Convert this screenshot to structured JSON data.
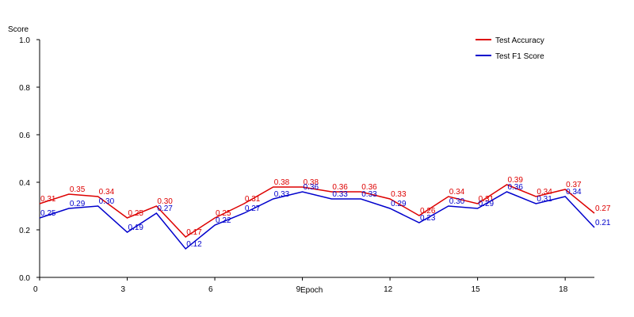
{
  "chart_data": {
    "type": "line",
    "title": "",
    "xlabel": "Epoch",
    "ylabel": "Score",
    "xlim": [
      0,
      19
    ],
    "ylim": [
      0,
      1.0
    ],
    "xticks": [
      0,
      3,
      6,
      9,
      12,
      15,
      18
    ],
    "yticks": [
      0.0,
      0.2,
      0.4,
      0.6,
      0.8,
      1.0
    ],
    "xtick_labels": [
      "0",
      "3",
      "6",
      "9",
      "12",
      "15",
      "18"
    ],
    "ytick_labels": [
      "0.0",
      "0.2",
      "0.4",
      "0.6",
      "0.8",
      "1.0"
    ],
    "grid": false,
    "legend_position": "top-right",
    "x": [
      0,
      1,
      2,
      3,
      4,
      5,
      6,
      7,
      8,
      9,
      10,
      11,
      12,
      13,
      14,
      15,
      16,
      17,
      18,
      19
    ],
    "series": [
      {
        "name": "Test Accuracy",
        "color": "#dd0000",
        "values": [
          0.31,
          0.35,
          0.34,
          0.25,
          0.3,
          0.17,
          0.25,
          0.31,
          0.38,
          0.38,
          0.36,
          0.36,
          0.33,
          0.26,
          0.34,
          0.31,
          0.39,
          0.34,
          0.37,
          0.27
        ],
        "labels": [
          "0.31",
          "0.35",
          "0.34",
          "0.25",
          "0.30",
          "0.17",
          "0.25",
          "0.31",
          "0.38",
          "0.38",
          "0.36",
          "0.36",
          "0.33",
          "0.26",
          "0.34",
          "0.31",
          "0.39",
          "0.34",
          "0.37",
          "0.27"
        ]
      },
      {
        "name": "Test F1 Score",
        "color": "#0000cc",
        "values": [
          0.25,
          0.29,
          0.3,
          0.19,
          0.27,
          0.12,
          0.22,
          0.27,
          0.33,
          0.36,
          0.33,
          0.33,
          0.29,
          0.23,
          0.3,
          0.29,
          0.36,
          0.31,
          0.34,
          0.21
        ],
        "labels": [
          "0.25",
          "0.29",
          "0.30",
          "0.19",
          "0.27",
          "0.12",
          "0.22",
          "0.27",
          "0.33",
          "0.36",
          "0.33",
          "0.33",
          "0.29",
          "0.23",
          "0.30",
          "0.29",
          "0.36",
          "0.31",
          "0.34",
          "0.21"
        ]
      }
    ]
  }
}
